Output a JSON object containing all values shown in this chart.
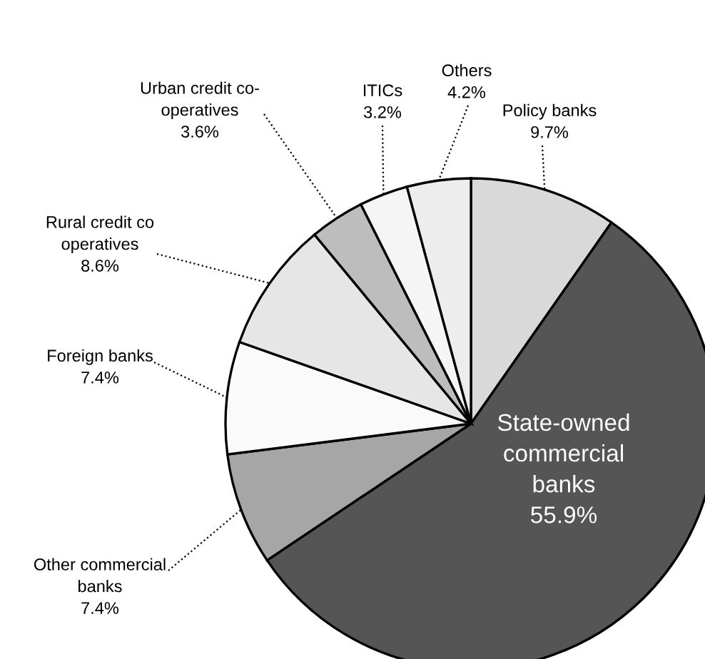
{
  "chart_data": {
    "type": "pie",
    "categories": [
      "Policy banks",
      "State-owned\ncommercial\nbanks",
      "Other commercial\nbanks",
      "Foreign banks",
      "Rural credit co\noperatives",
      "Urban credit co-\noperatives",
      "ITICs",
      "Others"
    ],
    "values": [
      9.7,
      55.9,
      7.4,
      7.4,
      8.6,
      3.6,
      3.2,
      4.2
    ],
    "value_labels": [
      "9.7%",
      "55.9%",
      "7.4%",
      "7.4%",
      "8.6%",
      "3.6%",
      "3.2%",
      "4.2%"
    ],
    "colors": [
      "#d9d9d9",
      "#555555",
      "#a6a6a6",
      "#fafafa",
      "#e6e6e6",
      "#bdbdbd",
      "#f5f5f5",
      "#ededed"
    ]
  }
}
